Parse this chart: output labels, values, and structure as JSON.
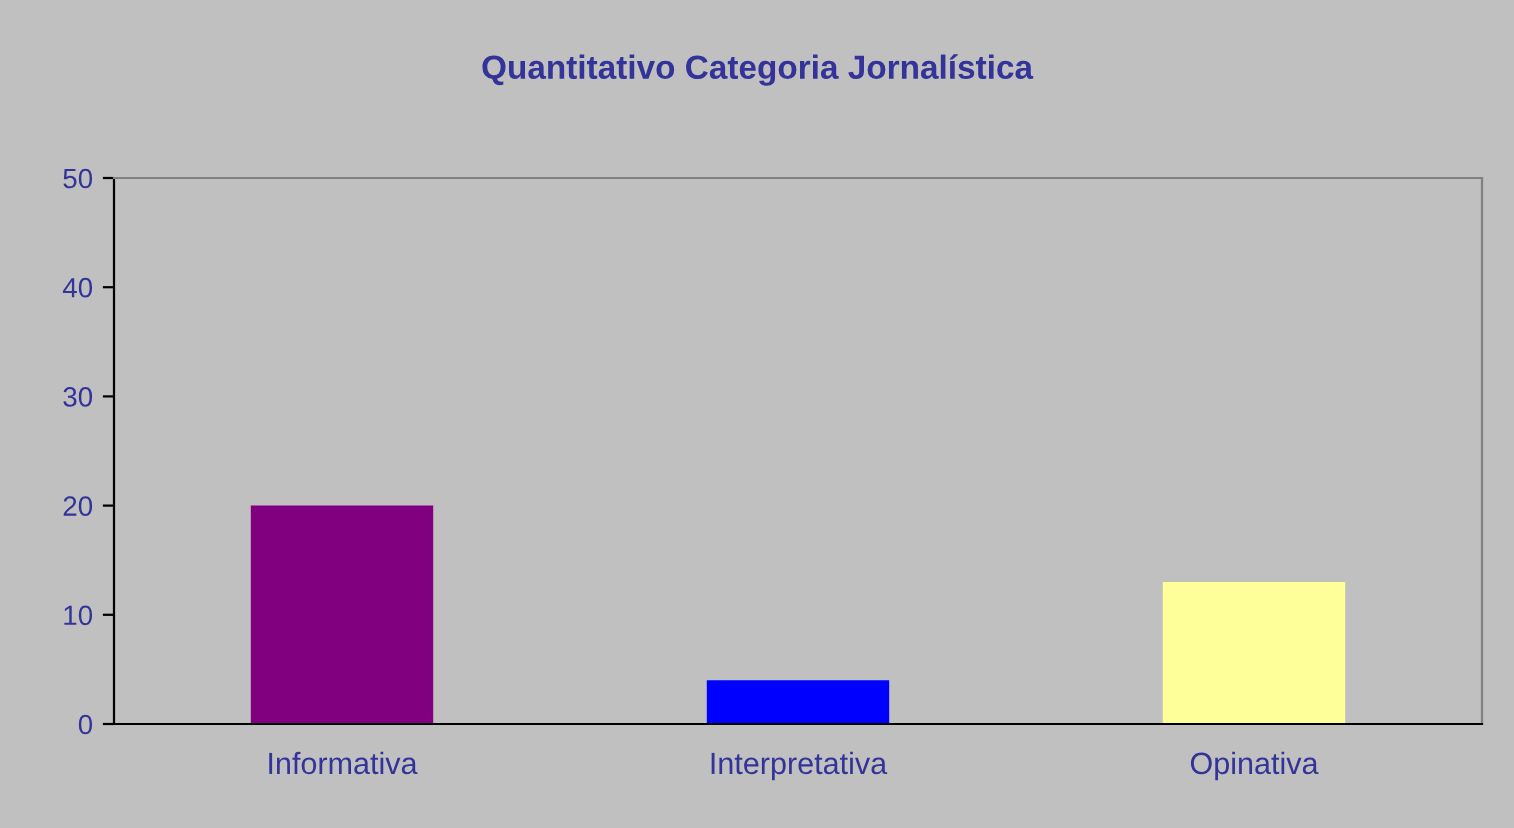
{
  "chart_data": {
    "type": "bar",
    "title": "Quantitativo Categoria Jornalística",
    "categories": [
      "Informativa",
      "Interpretativa",
      "Opinativa"
    ],
    "values": [
      20,
      4,
      13
    ],
    "colors": [
      "#800080",
      "#0000ff",
      "#ffff99"
    ],
    "ylim": [
      0,
      50
    ],
    "yticks": [
      0,
      10,
      20,
      30,
      40,
      50
    ],
    "grid": false,
    "legend": false
  }
}
